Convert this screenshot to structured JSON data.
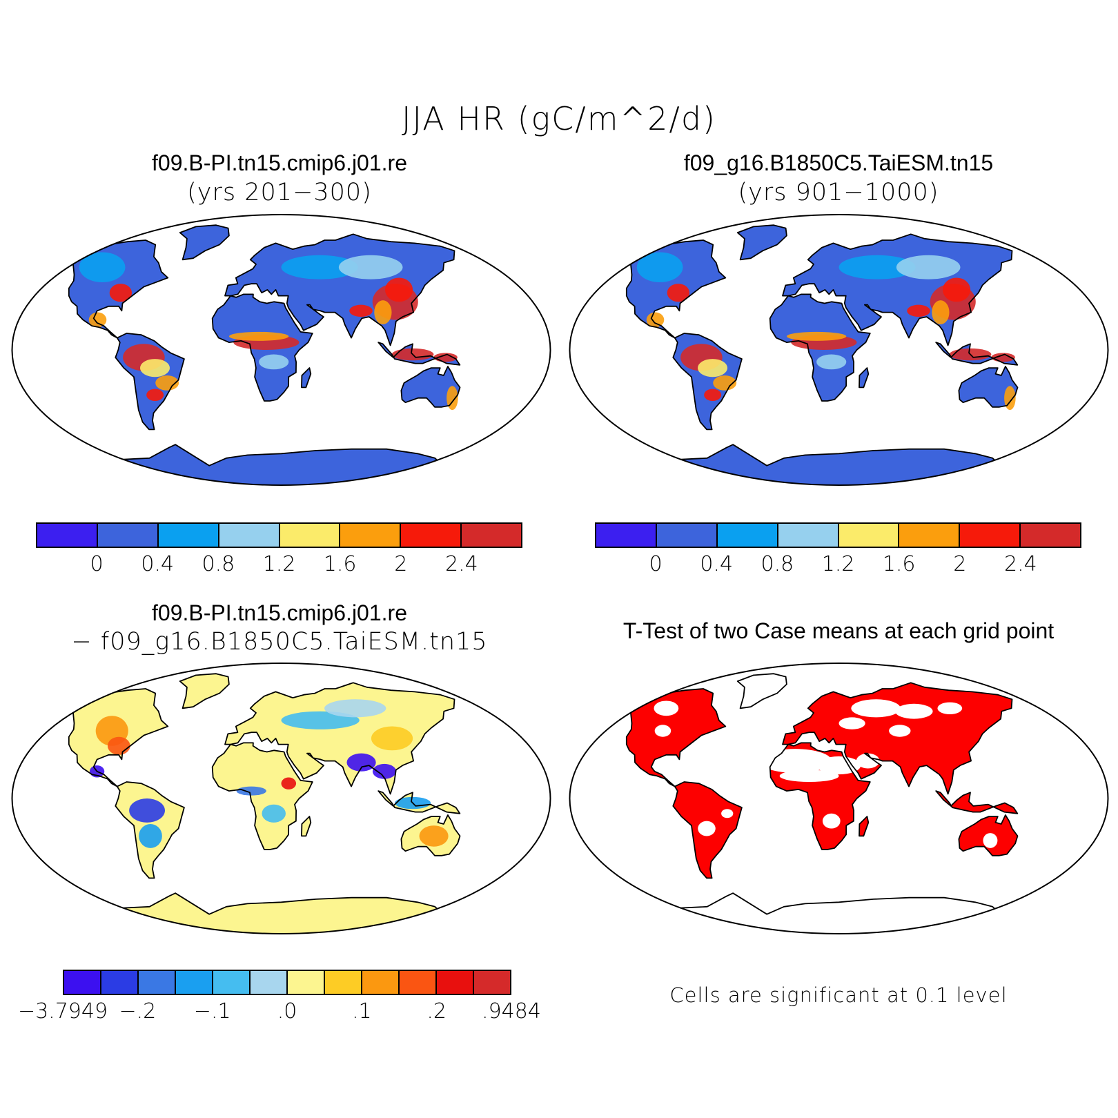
{
  "title": "JJA HR (gC/m^2/d)",
  "panels": [
    {
      "id": "case1",
      "title": "f09.B-PI.tn15.cmip6.j01.re",
      "subtitle": "(yrs 201−300)",
      "colors": [
        "#3c1ff0",
        "#3d64dc",
        "#0aa0f0",
        "#96d0ee",
        "#fbeb6a",
        "#fb9e0d",
        "#f61a0a",
        "#d42a2a"
      ],
      "ticks": [
        "0",
        "0.4",
        "0.8",
        "1.2",
        "1.6",
        "2",
        "2.4"
      ]
    },
    {
      "id": "case2",
      "title": "f09_g16.B1850C5.TaiESM.tn15",
      "subtitle": "(yrs 901−1000)",
      "colors": [
        "#3c1ff0",
        "#3d64dc",
        "#0aa0f0",
        "#96d0ee",
        "#fbeb6a",
        "#fb9e0d",
        "#f61a0a",
        "#d42a2a"
      ],
      "ticks": [
        "0",
        "0.4",
        "0.8",
        "1.2",
        "1.6",
        "2",
        "2.4"
      ]
    },
    {
      "id": "diff",
      "title": "f09.B-PI.tn15.cmip6.j01.re",
      "subtitle": "− f09_g16.B1850C5.TaiESM.tn15",
      "colors": [
        "#3c10f0",
        "#2b3ce4",
        "#3a78e4",
        "#1a9ff0",
        "#45bdf0",
        "#a8d6ee",
        "#fcf590",
        "#fdcc25",
        "#fb9810",
        "#fa5512",
        "#e8100e",
        "#d52a2a"
      ],
      "ticks": [
        "−3.7949",
        "−.2",
        "−.1",
        ".0",
        ".1",
        ".2",
        ".9484"
      ]
    },
    {
      "id": "ttest",
      "title": "T-Test of two Case means at each grid point",
      "note": "Cells are significant at 0.1 level",
      "color": "#fd0000"
    }
  ]
}
